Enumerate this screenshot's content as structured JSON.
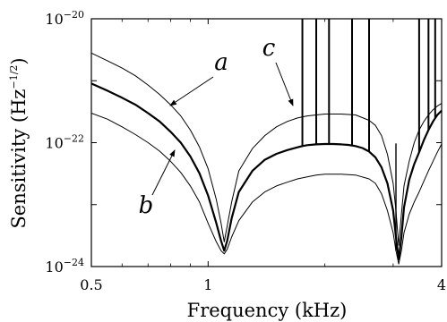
{
  "chart_data": {
    "type": "line",
    "xlabel": "Frequency (kHz)",
    "ylabel": "Sensitivity (Hz",
    "ylabel_exponent": "−1/2",
    "ylabel_close": ")",
    "x_scale": "log",
    "y_scale": "log",
    "xlim": [
      0.5,
      4
    ],
    "ylim": [
      1e-24,
      1e-20
    ],
    "x_ticks": [
      {
        "value": 0.5,
        "label": "0.5"
      },
      {
        "value": 1,
        "label": "1"
      },
      {
        "value": 4,
        "label": "4"
      }
    ],
    "y_ticks": [
      {
        "value": 1e-20,
        "base": "10",
        "exp": "−20"
      },
      {
        "value": 1e-22,
        "base": "10",
        "exp": "−22"
      },
      {
        "value": 1e-24,
        "base": "10",
        "exp": "−24"
      }
    ],
    "grid": false,
    "series": [
      {
        "label": "a",
        "stroke_width": 2.2,
        "x": [
          0.5,
          0.55,
          0.6,
          0.65,
          0.7,
          0.75,
          0.8,
          0.85,
          0.9,
          0.95,
          1.0,
          1.05,
          1.08,
          1.1,
          1.12,
          1.15,
          1.2,
          1.3,
          1.4,
          1.5,
          1.6,
          1.7,
          1.75,
          1.8,
          1.9,
          2.0,
          2.1,
          2.2,
          2.3,
          2.4,
          2.5,
          2.6,
          2.7,
          2.8,
          2.9,
          3.0,
          3.05,
          3.1,
          3.15,
          3.2,
          3.3,
          3.4,
          3.5,
          3.6,
          3.7,
          3.8,
          3.9,
          4.0
        ],
        "y": [
          9e-22,
          6.9e-22,
          5.3e-22,
          4.1e-22,
          3e-22,
          2.2e-22,
          1.5e-22,
          1e-22,
          6e-23,
          3.2e-23,
          1.4e-23,
          5e-24,
          2.6e-24,
          1.8e-24,
          2.6e-24,
          6e-24,
          1.6e-23,
          3.5e-23,
          5.3e-23,
          6.6e-23,
          7.6e-23,
          8.4e-23,
          8.8e-23,
          9.1e-23,
          9.4e-23,
          9.5e-23,
          9.5e-23,
          9.4e-23,
          9.2e-23,
          8.8e-23,
          8.2e-23,
          7.2e-23,
          5.8e-23,
          4e-23,
          2.2e-23,
          8e-24,
          3e-24,
          1.3e-24,
          3e-24,
          9e-24,
          2.5e-23,
          4.5e-23,
          7e-23,
          1.1e-22,
          1.6e-22,
          2.2e-22,
          2.8e-22,
          3.3e-22
        ],
        "spikes": [
          1.75,
          1.9,
          2.05,
          2.35,
          2.6,
          3.5,
          3.7,
          3.85
        ]
      },
      {
        "label": "b",
        "stroke_width": 1.0,
        "x": [
          0.5,
          0.55,
          0.6,
          0.65,
          0.7,
          0.75,
          0.8,
          0.85,
          0.9,
          0.95,
          1.0,
          1.05,
          1.08,
          1.1,
          1.12,
          1.15,
          1.2,
          1.3,
          1.4,
          1.5,
          1.6,
          1.7,
          1.8,
          1.9,
          2.0,
          2.2,
          2.4,
          2.6,
          2.7,
          2.8,
          2.9,
          3.0,
          3.05,
          3.1,
          3.15,
          3.2,
          3.3,
          3.4,
          3.5,
          3.6,
          3.7,
          3.8,
          3.9,
          4.0
        ],
        "y": [
          3e-22,
          2.4e-22,
          1.8e-22,
          1.35e-22,
          1e-22,
          7.3e-23,
          5e-23,
          3.3e-23,
          2e-23,
          1.1e-23,
          5e-24,
          2.5e-24,
          1.8e-24,
          1.6e-24,
          1.9e-24,
          3e-24,
          5.5e-24,
          1.1e-23,
          1.6e-23,
          2e-23,
          2.3e-23,
          2.6e-23,
          2.8e-23,
          3e-23,
          3.1e-23,
          3.1e-23,
          3e-23,
          2.6e-23,
          2.2e-23,
          1.5e-23,
          8e-24,
          3.5e-24,
          1.8e-24,
          1.1e-24,
          1.8e-24,
          3.5e-24,
          7e-24,
          1.1e-23,
          1.6e-23,
          2.4e-23,
          3.5e-23,
          5e-23,
          7e-23,
          9.5e-23
        ],
        "spikes": [
          3.05
        ]
      },
      {
        "label": "c",
        "stroke_width": 1.0,
        "x": [
          0.5,
          0.55,
          0.6,
          0.65,
          0.7,
          0.75,
          0.8,
          0.85,
          0.9,
          0.95,
          1.0,
          1.05,
          1.08,
          1.1,
          1.12,
          1.15,
          1.2,
          1.3,
          1.4,
          1.5,
          1.6,
          1.7,
          1.8,
          1.9,
          2.0,
          2.2,
          2.4,
          2.6,
          2.7,
          2.8,
          2.9,
          3.0,
          3.05,
          3.1,
          3.15,
          3.2,
          3.3,
          3.4,
          3.5,
          3.6,
          3.7,
          3.8,
          3.9,
          4.0
        ],
        "y": [
          2.8e-21,
          2.1e-21,
          1.6e-21,
          1.2e-21,
          8.5e-22,
          6e-22,
          4.1e-22,
          2.7e-22,
          1.6e-22,
          8.5e-23,
          3.8e-23,
          1.2e-23,
          5e-24,
          2.5e-24,
          4.5e-24,
          1.1e-23,
          3.5e-23,
          8e-23,
          1.3e-22,
          1.8e-22,
          2.2e-22,
          2.5e-22,
          2.7e-22,
          2.8e-22,
          2.9e-22,
          2.9e-22,
          2.8e-22,
          2.3e-22,
          1.9e-22,
          1.3e-22,
          6.5e-23,
          2.2e-23,
          8e-24,
          2.2e-24,
          7e-24,
          2e-23,
          5e-23,
          1e-22,
          1.6e-22,
          2.2e-22,
          2.8e-22,
          3.4e-22,
          3.9e-22,
          4.3e-22
        ],
        "spikes": []
      }
    ],
    "annotations": [
      {
        "text": "a",
        "target_series": "a"
      },
      {
        "text": "b",
        "target_series": "b"
      },
      {
        "text": "c",
        "target_series": "c"
      }
    ]
  }
}
